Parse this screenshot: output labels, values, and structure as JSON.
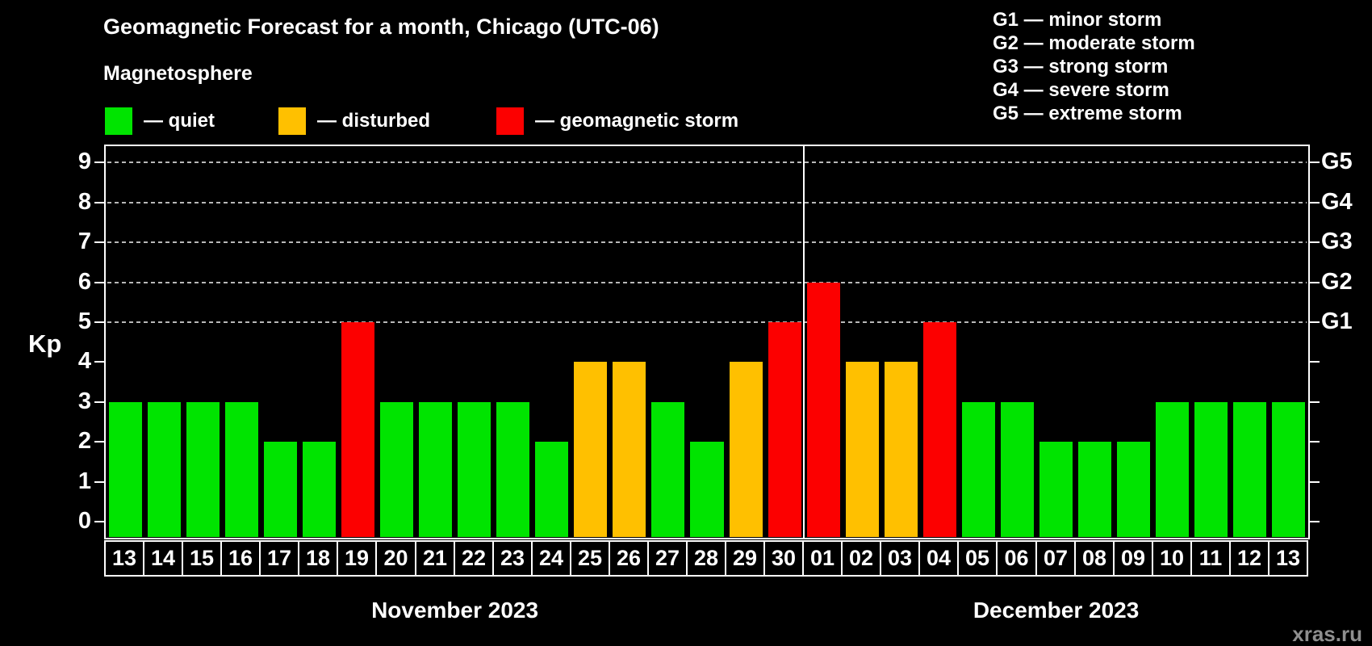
{
  "header": {
    "title": "Geomagnetic Forecast for a month, Chicago (UTC-06)",
    "subtitle": "Magnetosphere"
  },
  "legend": {
    "items": [
      {
        "name": "quiet",
        "label": "— quiet",
        "color": "#00e400"
      },
      {
        "name": "disturbed",
        "label": "— disturbed",
        "color": "#ffc000"
      },
      {
        "name": "storm",
        "label": "— geomagnetic storm",
        "color": "#fc0000"
      }
    ]
  },
  "g_legend": {
    "lines": [
      "G1 — minor storm",
      "G2 — moderate storm",
      "G3 — strong storm",
      "G4 — severe storm",
      "G5 — extreme storm"
    ]
  },
  "y_axis": {
    "label": "Kp",
    "ticks": [
      "0",
      "1",
      "2",
      "3",
      "4",
      "5",
      "6",
      "7",
      "8",
      "9"
    ]
  },
  "right_axis": {
    "labels": [
      {
        "text": "G1",
        "kp": 5
      },
      {
        "text": "G2",
        "kp": 6
      },
      {
        "text": "G3",
        "kp": 7
      },
      {
        "text": "G4",
        "kp": 8
      },
      {
        "text": "G5",
        "kp": 9
      }
    ]
  },
  "watermark": "xras.ru",
  "chart_data": {
    "type": "bar",
    "title": "Geomagnetic Forecast for a month, Chicago (UTC-06)",
    "ylabel": "Kp",
    "ylim": [
      0,
      9
    ],
    "grid": "dashed horizontal lines at Kp 5,6,7,8,9",
    "legend_position": "top",
    "categories": [
      "13",
      "14",
      "15",
      "16",
      "17",
      "18",
      "19",
      "20",
      "21",
      "22",
      "23",
      "24",
      "25",
      "26",
      "27",
      "28",
      "29",
      "30",
      "01",
      "02",
      "03",
      "04",
      "05",
      "06",
      "07",
      "08",
      "09",
      "10",
      "11",
      "12",
      "13"
    ],
    "values": [
      3,
      3,
      3,
      3,
      2,
      2,
      5,
      3,
      3,
      3,
      3,
      2,
      4,
      4,
      3,
      2,
      4,
      5,
      6,
      4,
      4,
      5,
      3,
      3,
      2,
      2,
      2,
      3,
      3,
      3,
      3
    ],
    "statuses": [
      "quiet",
      "quiet",
      "quiet",
      "quiet",
      "quiet",
      "quiet",
      "storm",
      "quiet",
      "quiet",
      "quiet",
      "quiet",
      "quiet",
      "disturbed",
      "disturbed",
      "quiet",
      "quiet",
      "disturbed",
      "storm",
      "storm",
      "disturbed",
      "disturbed",
      "storm",
      "quiet",
      "quiet",
      "quiet",
      "quiet",
      "quiet",
      "quiet",
      "quiet",
      "quiet",
      "quiet"
    ],
    "months": [
      {
        "label": "November 2023",
        "days": 18
      },
      {
        "label": "December 2023",
        "days": 13
      }
    ]
  }
}
